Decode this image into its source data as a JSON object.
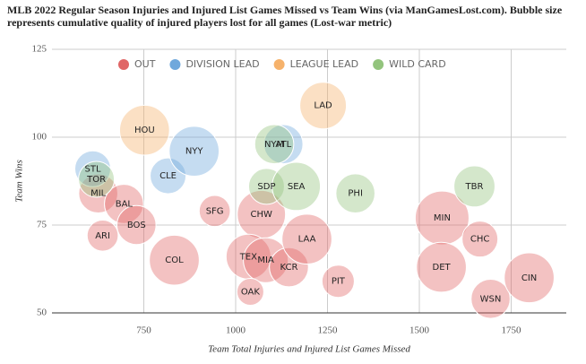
{
  "chart_data": {
    "type": "bubble",
    "title": "MLB 2022 Regular Season Injuries and Injured List Games Missed vs Team Wins (via ManGamesLost.com). Bubble size represents cumulative quality of injured players lost for all games (Lost-war metric)",
    "x_label": "Team Total Injuries and Injured List Games Missed",
    "y_label": "Team Wins",
    "xlim": [
      500,
      1900
    ],
    "xticks": [
      750,
      1000,
      1250,
      1500,
      1750
    ],
    "ylim": [
      50,
      125
    ],
    "yticks": [
      50,
      75,
      100,
      125
    ],
    "grid": true,
    "legend": "top",
    "series": [
      {
        "name": "OUT",
        "color": "#e06666",
        "labels": [
          "MIL",
          "BAL",
          "ARI",
          "BOS",
          "COL",
          "SFG",
          "CHW",
          "TEX",
          "MIA",
          "KCR",
          "OAK",
          "LAA",
          "PIT",
          "MIN",
          "DET",
          "CHC",
          "WSN",
          "CIN"
        ],
        "x": [
          626,
          696,
          638,
          730,
          833,
          943,
          1070,
          1035,
          1082,
          1145,
          1040,
          1194,
          1279,
          1562,
          1560,
          1665,
          1694,
          1799
        ],
        "values": [
          84,
          81,
          72,
          75,
          65,
          79,
          78,
          66,
          65,
          63,
          56,
          71,
          59,
          77,
          63,
          71,
          54,
          60
        ],
        "sizes": [
          19,
          19,
          12,
          19,
          31,
          12,
          29,
          25,
          25,
          19,
          9,
          31,
          13,
          36,
          31,
          16,
          19,
          31
        ]
      },
      {
        "name": "DIVISION LEAD",
        "color": "#6fa8dc",
        "labels": [
          "STL",
          "CLE",
          "NYY",
          "ATL"
        ],
        "x": [
          611,
          816,
          887,
          1130
        ],
        "values": [
          91,
          89,
          96,
          98
        ],
        "sizes": [
          16,
          16,
          31,
          19
        ]
      },
      {
        "name": "LEAGUE LEAD",
        "color": "#f6b26b",
        "labels": [
          "HOU",
          "LAD"
        ],
        "x": [
          752,
          1238
        ],
        "values": [
          102,
          109
        ],
        "sizes": [
          31,
          27
        ]
      },
      {
        "name": "WILD CARD",
        "color": "#93c47d",
        "labels": [
          "TOR",
          "NYM",
          "SDP",
          "SEA",
          "PHI",
          "TBR"
        ],
        "x": [
          621,
          1105,
          1084,
          1165,
          1326,
          1650
        ],
        "values": [
          88,
          98,
          86,
          86,
          84,
          86
        ],
        "sizes": [
          16,
          19,
          16,
          29,
          19,
          21
        ]
      }
    ]
  }
}
